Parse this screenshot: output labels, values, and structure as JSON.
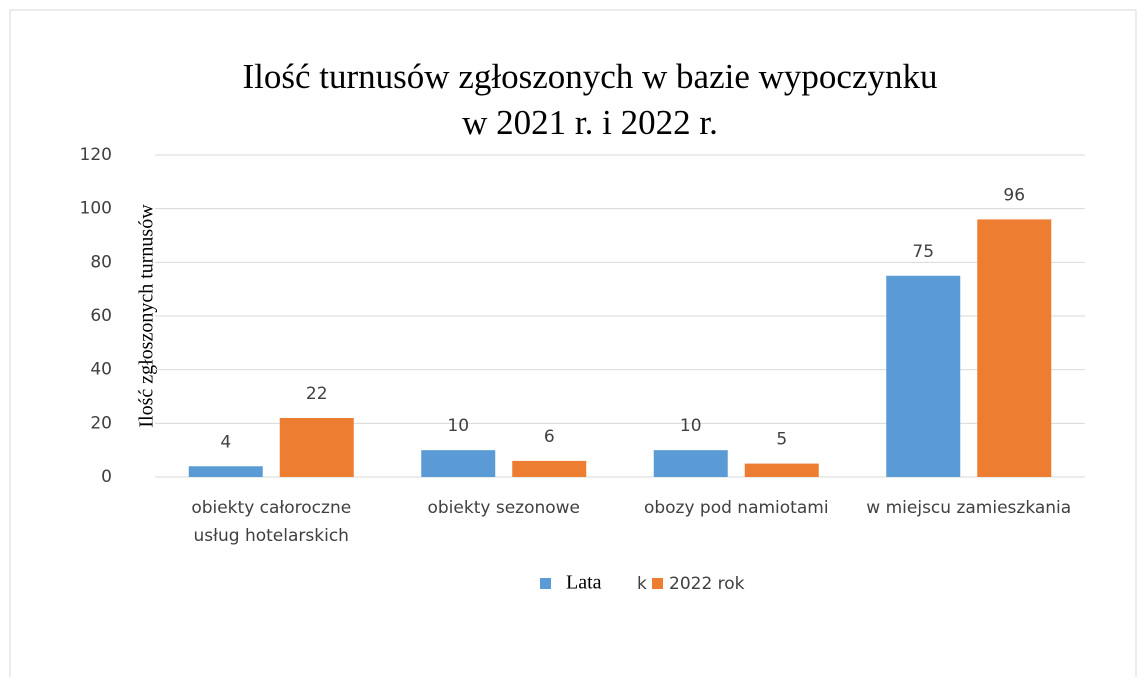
{
  "chart_data": {
    "type": "bar",
    "title": [
      "Ilość turnusów zgłoszonych w bazie wypoczynku",
      "w 2021 r. i 2022 r."
    ],
    "y_label": "Ilość zgłoszonych turnusów",
    "categories": [
      "obiekty całoroczne\nusług hotelarskich",
      "obiekty sezonowe",
      "obozy pod namiotami",
      "w miejscu zamieszkania"
    ],
    "series": [
      {
        "name": "k",
        "color": "#5b9bd5",
        "values": [
          4,
          10,
          10,
          75
        ]
      },
      {
        "name": "2022 rok",
        "color": "#ed7d31",
        "values": [
          22,
          6,
          5,
          96
        ]
      }
    ],
    "legend_overlay": "Lata",
    "ylim": [
      0,
      120
    ],
    "yticks": [
      0,
      20,
      40,
      60,
      80,
      100,
      120
    ],
    "grid": true,
    "legend": "bottom"
  }
}
